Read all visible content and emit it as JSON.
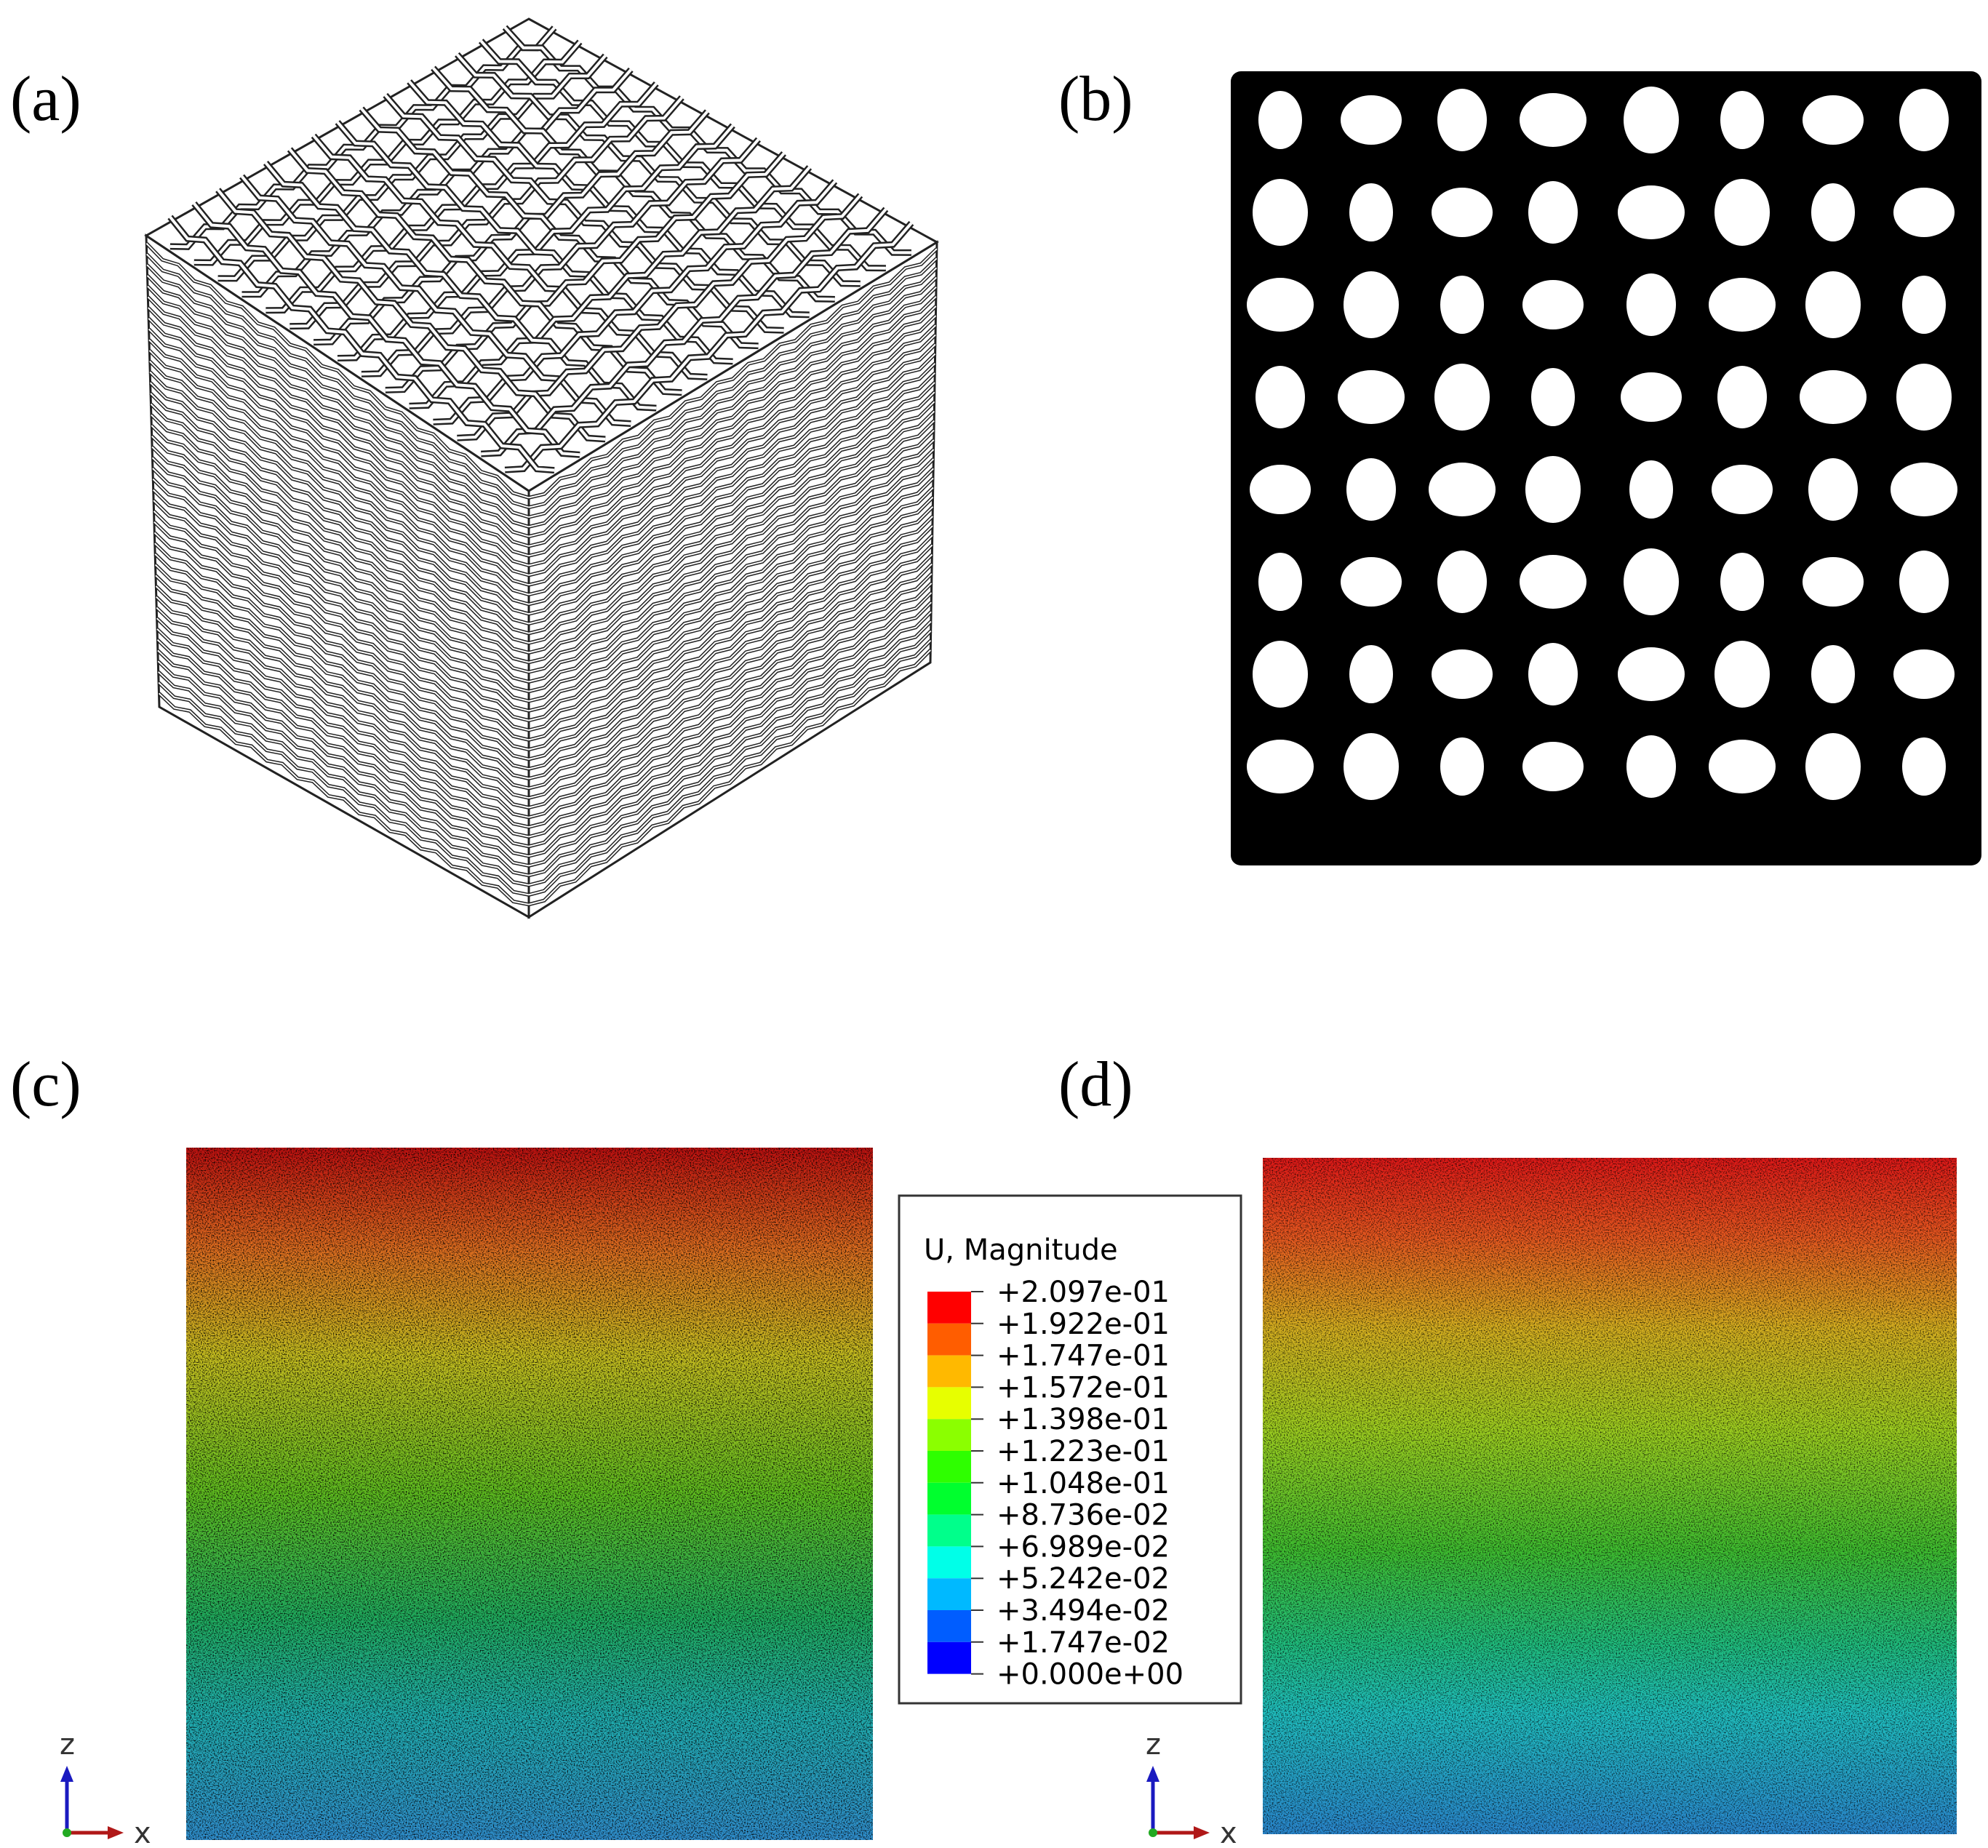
{
  "panels": [
    {
      "label": "(a)"
    },
    {
      "label": "(b)"
    },
    {
      "label": "(c)",
      "triad": {
        "z": "z",
        "x": "x"
      }
    },
    {
      "label": "(d)",
      "triad": {
        "z": "z",
        "x": "x"
      }
    }
  ],
  "legend": {
    "title": "U, Magnitude",
    "labels": [
      "+2.097e-01",
      "+1.922e-01",
      "+1.747e-01",
      "+1.572e-01",
      "+1.398e-01",
      "+1.223e-01",
      "+1.048e-01",
      "+8.736e-02",
      "+6.989e-02",
      "+5.242e-02",
      "+3.494e-02",
      "+1.747e-02",
      "+0.000e+00"
    ],
    "colors": [
      "#ff0000",
      "#ff5d00",
      "#ffb900",
      "#e7ff00",
      "#8bff00",
      "#2eff00",
      "#00ff2e",
      "#00ff8b",
      "#00ffe8",
      "#00b9ff",
      "#005dff",
      "#0000ff"
    ]
  }
}
